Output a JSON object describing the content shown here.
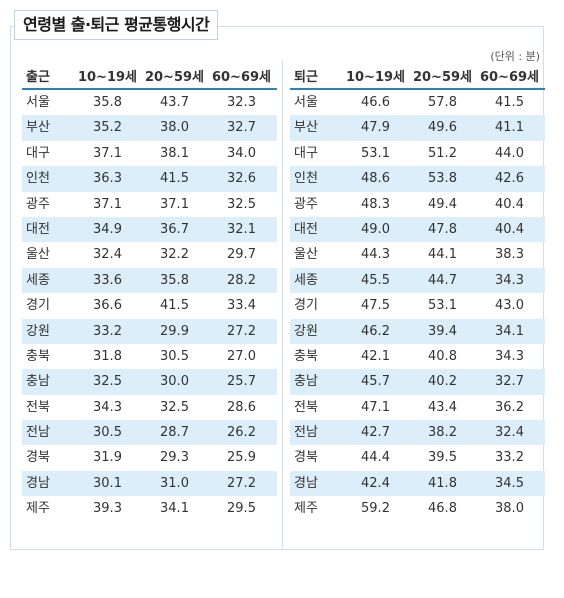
{
  "title": "연령별 출·퇴근 평균통행시간",
  "unit": "(단위 : 분)",
  "commute_out": {
    "header": [
      "출근",
      "10~19세",
      "20~59세",
      "60~69세"
    ],
    "rows": [
      [
        "서울",
        "35.8",
        "43.7",
        "32.3"
      ],
      [
        "부산",
        "35.2",
        "38.0",
        "32.7"
      ],
      [
        "대구",
        "37.1",
        "38.1",
        "34.0"
      ],
      [
        "인천",
        "36.3",
        "41.5",
        "32.6"
      ],
      [
        "광주",
        "37.1",
        "37.1",
        "32.5"
      ],
      [
        "대전",
        "34.9",
        "36.7",
        "32.1"
      ],
      [
        "울산",
        "32.4",
        "32.2",
        "29.7"
      ],
      [
        "세종",
        "33.6",
        "35.8",
        "28.2"
      ],
      [
        "경기",
        "36.6",
        "41.5",
        "33.4"
      ],
      [
        "강원",
        "33.2",
        "29.9",
        "27.2"
      ],
      [
        "충북",
        "31.8",
        "30.5",
        "27.0"
      ],
      [
        "충남",
        "32.5",
        "30.0",
        "25.7"
      ],
      [
        "전북",
        "34.3",
        "32.5",
        "28.6"
      ],
      [
        "전남",
        "30.5",
        "28.7",
        "26.2"
      ],
      [
        "경북",
        "31.9",
        "29.3",
        "25.9"
      ],
      [
        "경남",
        "30.1",
        "31.0",
        "27.2"
      ],
      [
        "제주",
        "39.3",
        "34.1",
        "29.5"
      ]
    ]
  },
  "commute_return": {
    "header": [
      "퇴근",
      "10~19세",
      "20~59세",
      "60~69세"
    ],
    "rows": [
      [
        "서울",
        "46.6",
        "57.8",
        "41.5"
      ],
      [
        "부산",
        "47.9",
        "49.6",
        "41.1"
      ],
      [
        "대구",
        "53.1",
        "51.2",
        "44.0"
      ],
      [
        "인천",
        "48.6",
        "53.8",
        "42.6"
      ],
      [
        "광주",
        "48.3",
        "49.4",
        "40.4"
      ],
      [
        "대전",
        "49.0",
        "47.8",
        "40.4"
      ],
      [
        "울산",
        "44.3",
        "44.1",
        "38.3"
      ],
      [
        "세종",
        "45.5",
        "44.7",
        "34.3"
      ],
      [
        "경기",
        "47.5",
        "53.1",
        "43.0"
      ],
      [
        "강원",
        "46.2",
        "39.4",
        "34.1"
      ],
      [
        "충북",
        "42.1",
        "40.8",
        "34.3"
      ],
      [
        "충남",
        "45.7",
        "40.2",
        "32.7"
      ],
      [
        "전북",
        "47.1",
        "43.4",
        "36.2"
      ],
      [
        "전남",
        "42.7",
        "38.2",
        "32.4"
      ],
      [
        "경북",
        "44.4",
        "39.5",
        "33.2"
      ],
      [
        "경남",
        "42.4",
        "41.8",
        "34.5"
      ],
      [
        "제주",
        "59.2",
        "46.8",
        "38.0"
      ]
    ]
  },
  "colors": {
    "row_shade": "#dbeef9",
    "header_rule": "#2f80b9",
    "frame": "#cfe0ea"
  }
}
